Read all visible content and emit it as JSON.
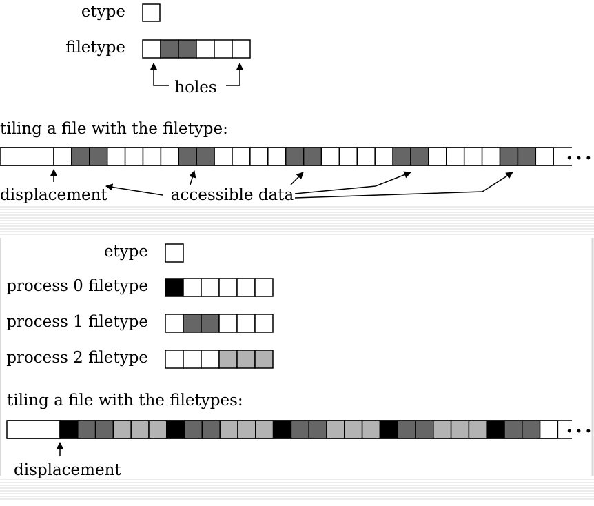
{
  "colors": {
    "empty": "#ffffff",
    "dark": "#666666",
    "black": "#000000",
    "light": "#b3b3b3",
    "stroke": "#000000",
    "stripe": "#d9d9d9"
  },
  "top": {
    "etype_label": "etype",
    "filetype_label": "filetype",
    "filetype_cells": [
      "empty",
      "dark",
      "dark",
      "empty",
      "empty",
      "empty"
    ],
    "holes_label": "holes",
    "tiling_label": "tiling a file with the filetype:",
    "tiling_cells": [
      "empty",
      "dark",
      "dark",
      "empty",
      "empty",
      "empty",
      "empty",
      "dark",
      "dark",
      "empty",
      "empty",
      "empty",
      "empty",
      "dark",
      "dark",
      "empty",
      "empty",
      "empty",
      "empty",
      "dark",
      "dark",
      "empty",
      "empty",
      "empty",
      "empty",
      "dark",
      "dark",
      "empty"
    ],
    "ellipsis": "• • •",
    "displacement_label": "displacement",
    "accessible_label": "accessible data"
  },
  "bottom": {
    "etype_label": "etype",
    "process_filetypes": [
      {
        "label": "process 0 filetype",
        "cells": [
          "black",
          "empty",
          "empty",
          "empty",
          "empty",
          "empty"
        ]
      },
      {
        "label": "process 1 filetype",
        "cells": [
          "empty",
          "dark",
          "dark",
          "empty",
          "empty",
          "empty"
        ]
      },
      {
        "label": "process 2 filetype",
        "cells": [
          "empty",
          "empty",
          "empty",
          "light",
          "light",
          "light"
        ]
      }
    ],
    "tiling_label": "tiling a file with the filetypes:",
    "tiling_cells": [
      "black",
      "dark",
      "dark",
      "light",
      "light",
      "light",
      "black",
      "dark",
      "dark",
      "light",
      "light",
      "light",
      "black",
      "dark",
      "dark",
      "light",
      "light",
      "light",
      "black",
      "dark",
      "dark",
      "light",
      "light",
      "light",
      "black",
      "dark",
      "dark",
      "empty"
    ],
    "ellipsis": "• • •",
    "displacement_label": "displacement"
  }
}
